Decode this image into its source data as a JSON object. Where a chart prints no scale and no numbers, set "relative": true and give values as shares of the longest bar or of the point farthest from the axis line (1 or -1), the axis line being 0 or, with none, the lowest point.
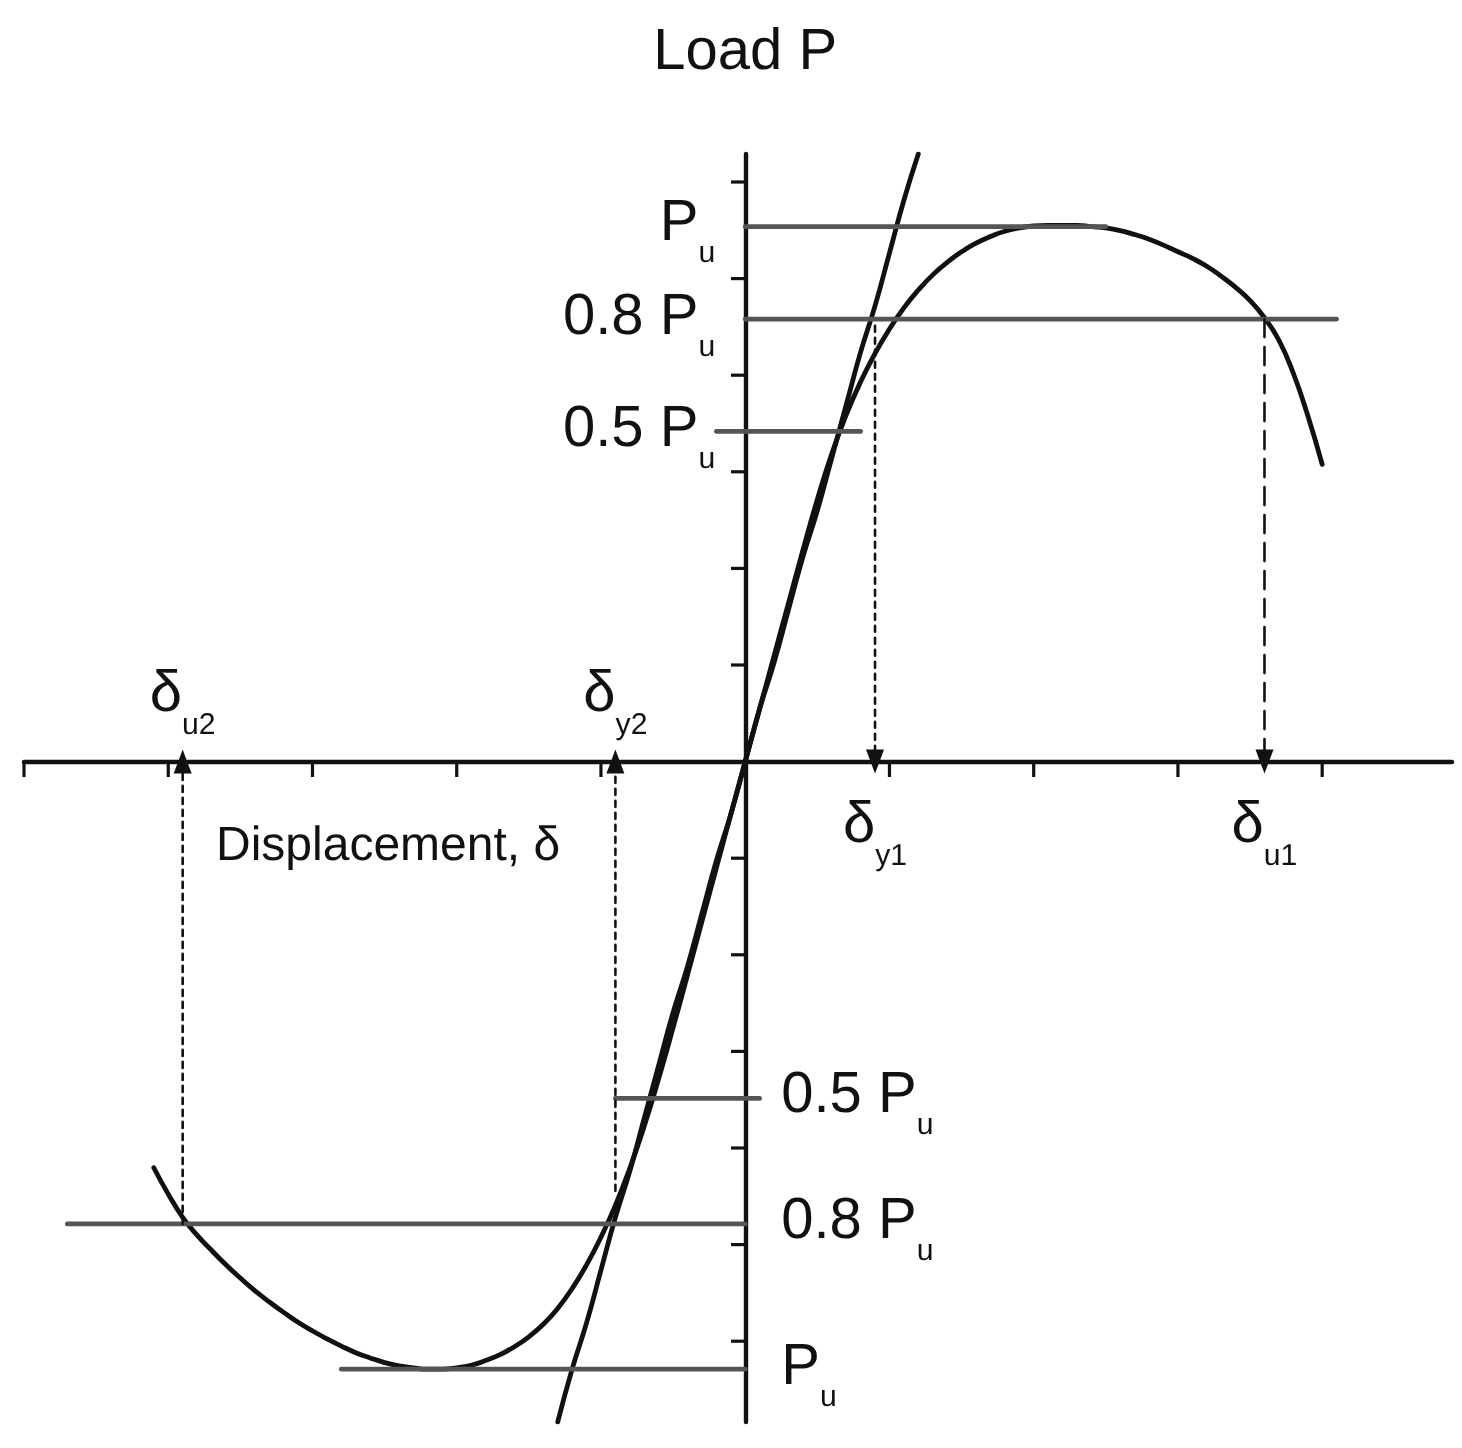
{
  "chart_data": {
    "type": "line",
    "relative": true,
    "xlabel": "Displacement, δ",
    "ylabel": "Load P",
    "categories": [
      null,
      null,
      null,
      null,
      null,
      null,
      null,
      null,
      null,
      null,
      null,
      "δ$_{u2}$",
      null,
      null,
      null,
      null,
      null,
      null,
      null,
      null,
      null,
      null,
      null,
      null,
      null,
      null,
      null,
      null,
      null,
      null,
      null,
      null,
      null,
      null,
      null,
      null,
      null,
      null,
      null,
      null,
      null,
      "δ$_{y2}$",
      null,
      null,
      null,
      null,
      null,
      null,
      null,
      null,
      null,
      null,
      null,
      null,
      null,
      null,
      null,
      null,
      null,
      "δ$_{y1}$",
      null,
      null,
      null,
      null,
      null,
      null,
      null,
      null,
      null,
      null,
      null,
      null,
      null,
      null,
      null,
      null,
      null,
      null,
      null,
      null,
      null,
      null,
      null,
      null,
      null,
      null,
      "δ$_{u1}$",
      null,
      null,
      null,
      null,
      null,
      null,
      null,
      null,
      null,
      null,
      null,
      null,
      null
    ],
    "series": [
      {
        "color": "#111111",
        "values": [
          null,
          null,
          null,
          null,
          null,
          null,
          null,
          null,
          null,
          -0.615,
          -0.655,
          -0.69,
          -0.717,
          -0.74,
          -0.762,
          -0.782,
          -0.801,
          -0.818,
          -0.834,
          -0.849,
          -0.862,
          -0.874,
          -0.885,
          -0.895,
          -0.903,
          -0.91,
          -0.915,
          -0.918,
          -0.92,
          -0.92,
          -0.918,
          -0.914,
          -0.907,
          -0.898,
          -0.886,
          -0.871,
          -0.852,
          -0.828,
          -0.798,
          -0.762,
          -0.72,
          -0.672,
          -0.616,
          -0.552,
          -0.48,
          -0.403,
          -0.323,
          -0.242,
          -0.161,
          -0.08,
          0,
          0.08,
          0.16,
          0.24,
          0.32,
          0.397,
          0.466,
          0.525,
          0.575,
          0.618,
          0.655,
          0.687,
          0.714,
          0.737,
          0.756,
          0.772,
          0.785,
          0.795,
          0.803,
          0.808,
          0.811,
          0.812,
          0.812,
          0.812,
          0.81,
          0.808,
          0.804,
          0.798,
          0.791,
          0.782,
          0.772,
          0.762,
          0.75,
          0.735,
          0.718,
          0.698,
          0.672,
          0.638,
          0.588,
          0.524,
          0.45,
          null,
          null,
          null,
          null,
          null,
          null,
          null,
          null,
          null
        ]
      },
      {
        "color": "#111111",
        "values": [
          null,
          null,
          null,
          null,
          null,
          null,
          null,
          null,
          null,
          null,
          null,
          null,
          null,
          null,
          null,
          null,
          null,
          null,
          null,
          null,
          null,
          null,
          null,
          null,
          null,
          null,
          null,
          null,
          null,
          null,
          null,
          null,
          null,
          null,
          null,
          null,
          null,
          -1,
          -0.92,
          -0.85,
          -0.77,
          -0.69,
          -0.62,
          -0.54,
          -0.46,
          -0.38,
          -0.31,
          -0.23,
          -0.15,
          -0.08,
          0,
          0.08,
          0.15,
          0.23,
          0.31,
          0.38,
          0.46,
          0.54,
          0.62,
          0.69,
          0.77,
          0.85,
          0.92,
          null,
          null,
          null,
          null,
          null,
          null,
          null,
          null,
          null,
          null,
          null,
          null,
          null,
          null,
          null,
          null,
          null,
          null,
          null,
          null,
          null,
          null,
          null,
          null,
          null,
          null,
          null,
          null,
          null,
          null,
          null,
          null,
          null,
          null,
          null,
          null,
          null
        ]
      },
      {
        "name": "P$_{u}$",
        "color": "#555555",
        "values": [
          null,
          null,
          null,
          null,
          null,
          null,
          null,
          null,
          null,
          null,
          null,
          null,
          null,
          null,
          null,
          null,
          null,
          null,
          null,
          null,
          null,
          null,
          null,
          null,
          null,
          null,
          null,
          null,
          null,
          null,
          null,
          null,
          null,
          null,
          null,
          null,
          null,
          null,
          null,
          null,
          null,
          null,
          null,
          null,
          null,
          null,
          null,
          null,
          null,
          null,
          0.81,
          0.81,
          0.81,
          0.81,
          0.81,
          0.81,
          0.81,
          0.81,
          0.81,
          0.81,
          0.81,
          0.81,
          0.81,
          0.81,
          0.81,
          0.81,
          0.81,
          0.81,
          0.81,
          0.81,
          0.81,
          0.81,
          0.81,
          0.81,
          0.81,
          0.81,
          null,
          null,
          null,
          null,
          null,
          null,
          null,
          null,
          null,
          null,
          null,
          null,
          null,
          null,
          null,
          null,
          null,
          null,
          null,
          null,
          null,
          null,
          null,
          null
        ]
      },
      {
        "name": "0.8 P$_{u}$",
        "color": "#555555",
        "values": [
          null,
          null,
          null,
          null,
          null,
          null,
          null,
          null,
          null,
          null,
          null,
          null,
          null,
          null,
          null,
          null,
          null,
          null,
          null,
          null,
          null,
          null,
          null,
          null,
          null,
          null,
          null,
          null,
          null,
          null,
          null,
          null,
          null,
          null,
          null,
          null,
          null,
          null,
          null,
          null,
          null,
          null,
          null,
          null,
          null,
          null,
          null,
          null,
          null,
          null,
          0.67,
          0.67,
          0.67,
          0.67,
          0.67,
          0.67,
          0.67,
          0.67,
          0.67,
          0.67,
          0.67,
          0.67,
          0.67,
          0.67,
          0.67,
          0.67,
          0.67,
          0.67,
          0.67,
          0.67,
          0.67,
          0.67,
          0.67,
          0.67,
          0.67,
          0.67,
          0.67,
          0.67,
          0.67,
          0.67,
          0.67,
          0.67,
          0.67,
          0.67,
          0.67,
          0.67,
          0.67,
          0.67,
          0.67,
          0.67,
          0.67,
          0.67,
          null,
          null,
          null,
          null,
          null,
          null,
          null,
          null
        ]
      },
      {
        "name": "0.5 P$_{u}$",
        "color": "#555555",
        "values": [
          null,
          null,
          null,
          null,
          null,
          null,
          null,
          null,
          null,
          null,
          null,
          null,
          null,
          null,
          null,
          null,
          null,
          null,
          null,
          null,
          null,
          null,
          null,
          null,
          null,
          null,
          null,
          null,
          null,
          null,
          null,
          null,
          null,
          null,
          null,
          null,
          null,
          null,
          null,
          null,
          null,
          null,
          null,
          null,
          null,
          null,
          null,
          null,
          0.5,
          0.5,
          0.5,
          0.5,
          0.5,
          0.5,
          0.5,
          0.5,
          0.5,
          0.5,
          0.5,
          null,
          null,
          null,
          null,
          null,
          null,
          null,
          null,
          null,
          null,
          null,
          null,
          null,
          null,
          null,
          null,
          null,
          null,
          null,
          null,
          null,
          null,
          null,
          null,
          null,
          null,
          null,
          null,
          null,
          null,
          null,
          null,
          null,
          null,
          null,
          null,
          null,
          null,
          null,
          null,
          null
        ]
      },
      {
        "name": "0.5 P$_{u}$",
        "color": "#555555",
        "values": [
          null,
          null,
          null,
          null,
          null,
          null,
          null,
          null,
          null,
          null,
          null,
          null,
          null,
          null,
          null,
          null,
          null,
          null,
          null,
          null,
          null,
          null,
          null,
          null,
          null,
          null,
          null,
          null,
          null,
          null,
          null,
          null,
          null,
          null,
          null,
          null,
          null,
          null,
          null,
          null,
          null,
          -0.51,
          -0.51,
          -0.51,
          -0.51,
          -0.51,
          -0.51,
          -0.51,
          -0.51,
          -0.51,
          -0.51,
          -0.51,
          null,
          null,
          null,
          null,
          null,
          null,
          null,
          null,
          null,
          null,
          null,
          null,
          null,
          null,
          null,
          null,
          null,
          null,
          null,
          null,
          null,
          null,
          null,
          null,
          null,
          null,
          null,
          null,
          null,
          null,
          null,
          null,
          null,
          null,
          null,
          null,
          null,
          null,
          null,
          null,
          null,
          null,
          null,
          null,
          null,
          null,
          null,
          null
        ]
      },
      {
        "name": "0.8 P$_{u}$",
        "color": "#555555",
        "values": [
          null,
          null,
          null,
          -0.7,
          -0.7,
          -0.7,
          -0.7,
          -0.7,
          -0.7,
          -0.7,
          -0.7,
          -0.7,
          -0.7,
          -0.7,
          -0.7,
          -0.7,
          -0.7,
          -0.7,
          -0.7,
          -0.7,
          -0.7,
          -0.7,
          -0.7,
          -0.7,
          -0.7,
          -0.7,
          -0.7,
          -0.7,
          -0.7,
          -0.7,
          -0.7,
          -0.7,
          -0.7,
          -0.7,
          -0.7,
          -0.7,
          -0.7,
          -0.7,
          -0.7,
          -0.7,
          -0.7,
          -0.7,
          -0.7,
          -0.7,
          -0.7,
          -0.7,
          -0.7,
          -0.7,
          -0.7,
          -0.7,
          -0.7,
          null,
          null,
          null,
          null,
          null,
          null,
          null,
          null,
          null,
          null,
          null,
          null,
          null,
          null,
          null,
          null,
          null,
          null,
          null,
          null,
          null,
          null,
          null,
          null,
          null,
          null,
          null,
          null,
          null,
          null,
          null,
          null,
          null,
          null,
          null,
          null,
          null,
          null,
          null,
          null,
          null,
          null,
          null,
          null,
          null,
          null,
          null,
          null,
          null
        ]
      },
      {
        "name": "P$_{u}$",
        "color": "#555555",
        "values": [
          null,
          null,
          null,
          null,
          null,
          null,
          null,
          null,
          null,
          null,
          null,
          null,
          null,
          null,
          null,
          null,
          null,
          null,
          null,
          null,
          null,
          null,
          -0.92,
          -0.92,
          -0.92,
          -0.92,
          -0.92,
          -0.92,
          -0.92,
          -0.92,
          -0.92,
          -0.92,
          -0.92,
          -0.92,
          -0.92,
          -0.92,
          -0.92,
          -0.92,
          -0.92,
          -0.92,
          -0.92,
          -0.92,
          -0.92,
          -0.92,
          -0.92,
          -0.92,
          -0.92,
          -0.92,
          -0.92,
          -0.92,
          -0.92,
          null,
          null,
          null,
          null,
          null,
          null,
          null,
          null,
          null,
          null,
          null,
          null,
          null,
          null,
          null,
          null,
          null,
          null,
          null,
          null,
          null,
          null,
          null,
          null,
          null,
          null,
          null,
          null,
          null,
          null,
          null,
          null,
          null,
          null,
          null,
          null,
          null,
          null,
          null,
          null,
          null,
          null,
          null,
          null,
          null,
          null,
          null,
          null,
          null
        ]
      },
      {
        "color": "#111111",
        "x": [
          "δ$_{u2}$",
          "δ$_{u2}$"
        ],
        "values": [
          -0.7,
          0
        ],
        "line_style": "dotted"
      },
      {
        "color": "#111111",
        "x": [
          "δ$_{y2}$",
          "δ$_{y2}$"
        ],
        "values": [
          -0.65,
          0
        ],
        "line_style": "dotted"
      },
      {
        "color": "#111111",
        "x": [
          "δ$_{y1}$",
          "δ$_{y1}$"
        ],
        "values": [
          0.66,
          0
        ],
        "line_style": "dotted"
      },
      {
        "color": "#111111",
        "x": [
          "δ$_{u1}$",
          "δ$_{u1}$"
        ],
        "values": [
          0.67,
          0
        ],
        "line_style": "dashed"
      }
    ]
  }
}
